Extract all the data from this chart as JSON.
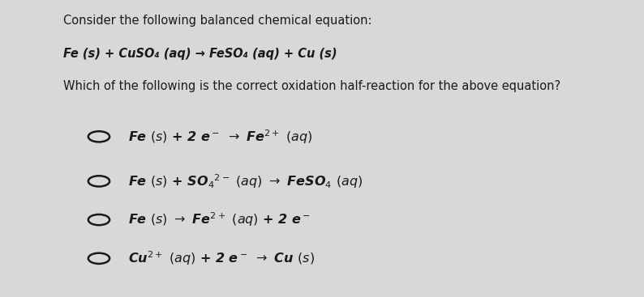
{
  "background_color": "#d8d8d8",
  "panel_color": "#e8e8e8",
  "text_color": "#1a1a1a",
  "title_lines": [
    "Consider the following balanced chemical equation:",
    "Fe (s) + CuSO₄ (aq) → FeSO₄ (aq) + Cu (s)",
    "Which of the following is the correct oxidation half-reaction for the above equation?"
  ],
  "title_italic": [
    false,
    true,
    false
  ],
  "options": [
    [
      "Fe (s) + 2 e",
      "⁻",
      " → Fe",
      "²⁺",
      " (aq)"
    ],
    [
      "Fe (s) + SO₄",
      "²⁻",
      " (aq) → FeSO₄ (aq)"
    ],
    [
      "Fe (s) → Fe",
      "²⁺",
      " (aq) + 2 e",
      "⁻"
    ],
    [
      "Cu",
      "²⁺",
      " (aq) + 2 e",
      "⁻",
      " → Cu (s)"
    ]
  ],
  "title_fontsize": 10.5,
  "option_fontsize": 11.5,
  "fig_width": 7.94,
  "fig_height": 3.67
}
